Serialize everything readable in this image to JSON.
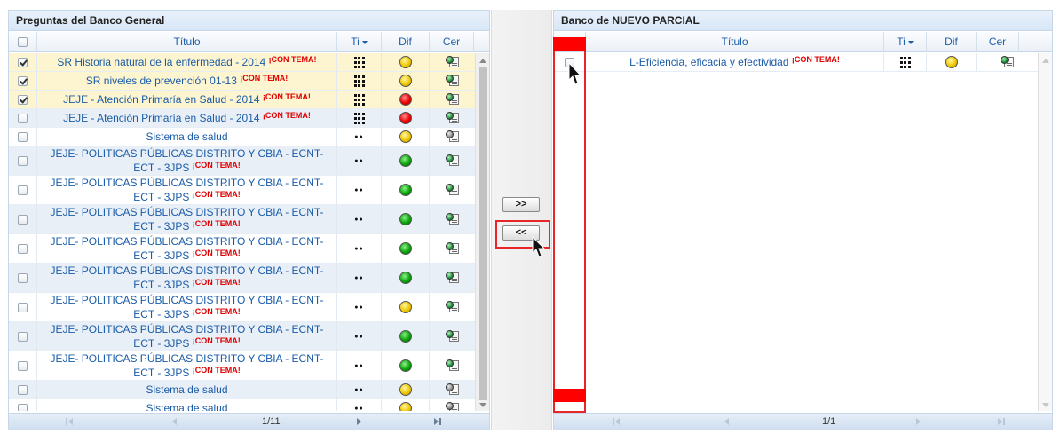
{
  "left": {
    "title": "Preguntas del Banco General",
    "headers": {
      "titulo": "Título",
      "ti": "Ti",
      "dif": "Dif",
      "cer": "Cer"
    },
    "rows": [
      {
        "checked": true,
        "title": "SR Historia natural de la enfermedad - 2014",
        "tag": "¡CON TEMA!",
        "type": "grid",
        "dif": "yellow",
        "cer": "green",
        "style": "sel"
      },
      {
        "checked": true,
        "title": "SR niveles de prevención 01-13",
        "tag": "¡CON TEMA!",
        "type": "grid",
        "dif": "yellow",
        "cer": "green",
        "style": "sel"
      },
      {
        "checked": true,
        "title": "JEJE - Atención Primaría en Salud - 2014",
        "tag": "¡CON TEMA!",
        "type": "grid",
        "dif": "red",
        "cer": "green",
        "style": "sel"
      },
      {
        "checked": false,
        "title": "JEJE - Atención Primaría en Salud - 2014",
        "tag": "¡CON TEMA!",
        "type": "grid",
        "dif": "red",
        "cer": "green",
        "style": "alt"
      },
      {
        "checked": false,
        "title": "Sistema de salud",
        "tag": "",
        "type": "dots",
        "dif": "yellow",
        "cer": "gray",
        "style": "plain"
      },
      {
        "checked": false,
        "title": "JEJE- POLITICAS PÚBLICAS DISTRITO Y CBIA - ECNT-ECT - 3JPS",
        "tag": "¡CON TEMA!",
        "type": "dots",
        "dif": "green",
        "cer": "green",
        "style": "alt"
      },
      {
        "checked": false,
        "title": "JEJE- POLITICAS PÚBLICAS DISTRITO Y CBIA - ECNT-ECT - 3JPS",
        "tag": "¡CON TEMA!",
        "type": "dots",
        "dif": "green",
        "cer": "green",
        "style": "plain"
      },
      {
        "checked": false,
        "title": "JEJE- POLITICAS PÚBLICAS DISTRITO Y CBIA - ECNT-ECT - 3JPS",
        "tag": "¡CON TEMA!",
        "type": "dots",
        "dif": "green",
        "cer": "green",
        "style": "alt"
      },
      {
        "checked": false,
        "title": "JEJE- POLITICAS PÚBLICAS DISTRITO Y CBIA - ECNT-ECT - 3JPS",
        "tag": "¡CON TEMA!",
        "type": "dots",
        "dif": "green",
        "cer": "green",
        "style": "plain"
      },
      {
        "checked": false,
        "title": "JEJE- POLITICAS PÚBLICAS DISTRITO Y CBIA - ECNT-ECT - 3JPS",
        "tag": "¡CON TEMA!",
        "type": "dots",
        "dif": "green",
        "cer": "green",
        "style": "alt"
      },
      {
        "checked": false,
        "title": "JEJE- POLITICAS PÚBLICAS DISTRITO Y CBIA - ECNT-ECT - 3JPS",
        "tag": "¡CON TEMA!",
        "type": "dots",
        "dif": "yellow",
        "cer": "green",
        "style": "plain"
      },
      {
        "checked": false,
        "title": "JEJE- POLITICAS PÚBLICAS DISTRITO Y CBIA - ECNT-ECT - 3JPS",
        "tag": "¡CON TEMA!",
        "type": "dots",
        "dif": "green",
        "cer": "green",
        "style": "alt"
      },
      {
        "checked": false,
        "title": "JEJE- POLITICAS PÚBLICAS DISTRITO Y CBIA - ECNT-ECT - 3JPS",
        "tag": "¡CON TEMA!",
        "type": "dots",
        "dif": "green",
        "cer": "green",
        "style": "plain"
      },
      {
        "checked": false,
        "title": "Sistema de salud",
        "tag": "",
        "type": "dots",
        "dif": "yellow",
        "cer": "gray",
        "style": "alt"
      },
      {
        "checked": false,
        "title": "Sistema de salud",
        "tag": "",
        "type": "dots",
        "dif": "yellow",
        "cer": "gray",
        "style": "plain"
      }
    ],
    "pager": "1/11"
  },
  "middle": {
    "add_label": ">>",
    "remove_label": "<<"
  },
  "right": {
    "title": "Banco de NUEVO PARCIAL",
    "headers": {
      "titulo": "Título",
      "ti": "Ti",
      "dif": "Dif",
      "cer": "Cer"
    },
    "rows": [
      {
        "checked": false,
        "title": "L-Eficiencia, eficacia y efectividad",
        "tag": "¡CON TEMA!",
        "type": "grid",
        "dif": "yellow",
        "cer": "green",
        "style": "plain"
      }
    ],
    "pager": "1/1"
  },
  "colors": {
    "highlight": "#e8262a",
    "link": "#1a5ca8",
    "tag": "#e00000",
    "selected_row": "#fdf4d0"
  }
}
